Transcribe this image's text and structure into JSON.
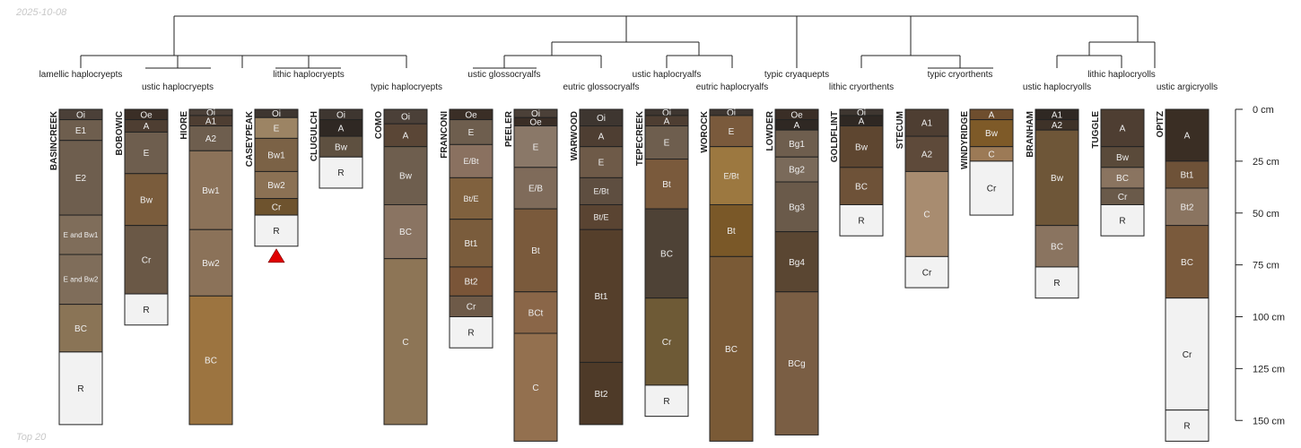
{
  "date_label": "2025-10-08",
  "caption": "Top 20",
  "depth_axis": {
    "unit": "cm",
    "ticks": [
      {
        "value": 0,
        "label": "0 cm"
      },
      {
        "value": 25,
        "label": "25 cm"
      },
      {
        "value": 50,
        "label": "50 cm"
      },
      {
        "value": 75,
        "label": "75 cm"
      },
      {
        "value": 100,
        "label": "100 cm"
      },
      {
        "value": 125,
        "label": "125 cm"
      },
      {
        "value": 150,
        "label": "150 cm"
      }
    ]
  },
  "classes": [
    "lamellic haplocryepts",
    "ustic haplocryepts",
    "lithic haplocryepts",
    "typic haplocryepts",
    "ustic glossocryalfs",
    "eutric glossocryalfs",
    "ustic haplocryalfs",
    "eutric haplocryalfs",
    "typic cryaquepts",
    "lithic cryorthents",
    "typic cryorthents",
    "ustic haplocryolls",
    "lithic haplocryolls",
    "ustic argicryolls"
  ],
  "profiles": [
    {
      "name": "BASINCREEK",
      "horizons": [
        {
          "name": "Oi",
          "top": 0,
          "bottom": 5,
          "color": "#4b4038"
        },
        {
          "name": "E1",
          "top": 5,
          "bottom": 15,
          "color": "#6e5e4e"
        },
        {
          "name": "E2",
          "top": 15,
          "bottom": 51,
          "color": "#6e5e4e"
        },
        {
          "name": "E and Bw1",
          "top": 51,
          "bottom": 70,
          "color": "#7f6d5a"
        },
        {
          "name": "E and Bw2",
          "top": 70,
          "bottom": 94,
          "color": "#7f6d5a"
        },
        {
          "name": "BC",
          "top": 94,
          "bottom": 117,
          "color": "#8a7456"
        },
        {
          "name": "R",
          "top": 117,
          "bottom": 152,
          "color": "#f2f2f2"
        }
      ]
    },
    {
      "name": "BOBOWIC",
      "horizons": [
        {
          "name": "Oe",
          "top": 0,
          "bottom": 5,
          "color": "#3a2e26"
        },
        {
          "name": "A",
          "top": 5,
          "bottom": 11,
          "color": "#4e3e32"
        },
        {
          "name": "E",
          "top": 11,
          "bottom": 31,
          "color": "#6e5e4e"
        },
        {
          "name": "Bw",
          "top": 31,
          "bottom": 56,
          "color": "#7a5c3c"
        },
        {
          "name": "Cr",
          "top": 56,
          "bottom": 89,
          "color": "#6a5846"
        },
        {
          "name": "R",
          "top": 89,
          "bottom": 104,
          "color": "#f2f2f2"
        }
      ]
    },
    {
      "name": "HIORE",
      "horizons": [
        {
          "name": "Oi",
          "top": 0,
          "bottom": 3,
          "color": "#4b4038"
        },
        {
          "name": "A1",
          "top": 3,
          "bottom": 8,
          "color": "#4e3e32"
        },
        {
          "name": "A2",
          "top": 8,
          "bottom": 20,
          "color": "#6e5e4e"
        },
        {
          "name": "Bw1",
          "top": 20,
          "bottom": 58,
          "color": "#8b7259"
        },
        {
          "name": "Bw2",
          "top": 58,
          "bottom": 90,
          "color": "#8b7259"
        },
        {
          "name": "BC",
          "top": 90,
          "bottom": 152,
          "color": "#9c7440"
        }
      ]
    },
    {
      "name": "CASEYPEAK",
      "horizons": [
        {
          "name": "Oi",
          "top": 0,
          "bottom": 4,
          "color": "#3e3630"
        },
        {
          "name": "E",
          "top": 4,
          "bottom": 14,
          "color": "#9c8464"
        },
        {
          "name": "Bw1",
          "top": 14,
          "bottom": 30,
          "color": "#7b6246"
        },
        {
          "name": "Bw2",
          "top": 30,
          "bottom": 43,
          "color": "#8b7154"
        },
        {
          "name": "Cr",
          "top": 43,
          "bottom": 51,
          "color": "#6e532e"
        },
        {
          "name": "R",
          "top": 51,
          "bottom": 66,
          "color": "#f2f2f2"
        }
      ],
      "marker": true
    },
    {
      "name": "CLUGULCH",
      "horizons": [
        {
          "name": "Oi",
          "top": 0,
          "bottom": 5,
          "color": "#3e3630"
        },
        {
          "name": "A",
          "top": 5,
          "bottom": 13,
          "color": "#2f2823"
        },
        {
          "name": "Bw",
          "top": 13,
          "bottom": 23,
          "color": "#5e5040"
        },
        {
          "name": "R",
          "top": 23,
          "bottom": 38,
          "color": "#f2f2f2"
        }
      ]
    },
    {
      "name": "COMO",
      "horizons": [
        {
          "name": "Oi",
          "top": 0,
          "bottom": 7,
          "color": "#4b4038"
        },
        {
          "name": "A",
          "top": 7,
          "bottom": 18,
          "color": "#5a4636"
        },
        {
          "name": "Bw",
          "top": 18,
          "bottom": 46,
          "color": "#6e5e4e"
        },
        {
          "name": "BC",
          "top": 46,
          "bottom": 72,
          "color": "#8a7462"
        },
        {
          "name": "C",
          "top": 72,
          "bottom": 152,
          "color": "#8d7556"
        }
      ]
    },
    {
      "name": "FRANCONI",
      "horizons": [
        {
          "name": "Oe",
          "top": 0,
          "bottom": 5,
          "color": "#3a2e26"
        },
        {
          "name": "E",
          "top": 5,
          "bottom": 17,
          "color": "#6e5e4e"
        },
        {
          "name": "E/Bt",
          "top": 17,
          "bottom": 33,
          "color": "#8a7160"
        },
        {
          "name": "Bt/E",
          "top": 33,
          "bottom": 53,
          "color": "#80613e"
        },
        {
          "name": "Bt1",
          "top": 53,
          "bottom": 76,
          "color": "#7a5c3c"
        },
        {
          "name": "Bt2",
          "top": 76,
          "bottom": 90,
          "color": "#7a5538"
        },
        {
          "name": "Cr",
          "top": 90,
          "bottom": 100,
          "color": "#6e5a48"
        },
        {
          "name": "R",
          "top": 100,
          "bottom": 115,
          "color": "#f2f2f2"
        }
      ]
    },
    {
      "name": "PEELER",
      "horizons": [
        {
          "name": "Oi",
          "top": 0,
          "bottom": 4,
          "color": "#4b4038"
        },
        {
          "name": "Oe",
          "top": 4,
          "bottom": 8,
          "color": "#3a2e26"
        },
        {
          "name": "E",
          "top": 8,
          "bottom": 28,
          "color": "#8a7868"
        },
        {
          "name": "E/B",
          "top": 28,
          "bottom": 48,
          "color": "#7f6b5a"
        },
        {
          "name": "Bt",
          "top": 48,
          "bottom": 88,
          "color": "#7a5a3c"
        },
        {
          "name": "BCt",
          "top": 88,
          "bottom": 108,
          "color": "#8a6648"
        },
        {
          "name": "C",
          "top": 108,
          "bottom": 160,
          "color": "#93704f"
        }
      ]
    },
    {
      "name": "WARWOOD",
      "horizons": [
        {
          "name": "Oi",
          "top": 0,
          "bottom": 8,
          "color": "#3e3630"
        },
        {
          "name": "A",
          "top": 8,
          "bottom": 18,
          "color": "#4e3e32"
        },
        {
          "name": "E",
          "top": 18,
          "bottom": 33,
          "color": "#6e5a48"
        },
        {
          "name": "E/Bt",
          "top": 33,
          "bottom": 46,
          "color": "#5e4e40"
        },
        {
          "name": "Bt/E",
          "top": 46,
          "bottom": 58,
          "color": "#5a4432"
        },
        {
          "name": "Bt1",
          "top": 58,
          "bottom": 122,
          "color": "#553f2b"
        },
        {
          "name": "Bt2",
          "top": 122,
          "bottom": 152,
          "color": "#4e3a28"
        }
      ]
    },
    {
      "name": "TEPECREEK",
      "horizons": [
        {
          "name": "Oi",
          "top": 0,
          "bottom": 3,
          "color": "#3e3630"
        },
        {
          "name": "A",
          "top": 3,
          "bottom": 8,
          "color": "#4e3e32"
        },
        {
          "name": "E",
          "top": 8,
          "bottom": 24,
          "color": "#6e5e4e"
        },
        {
          "name": "Bt",
          "top": 24,
          "bottom": 48,
          "color": "#7a5a3c"
        },
        {
          "name": "BC",
          "top": 48,
          "bottom": 91,
          "color": "#4e4236"
        },
        {
          "name": "Cr",
          "top": 91,
          "bottom": 133,
          "color": "#6e5a36"
        },
        {
          "name": "R",
          "top": 133,
          "bottom": 148,
          "color": "#f2f2f2"
        }
      ]
    },
    {
      "name": "WOROCK",
      "horizons": [
        {
          "name": "Oi",
          "top": 0,
          "bottom": 3,
          "color": "#3e3630"
        },
        {
          "name": "E",
          "top": 3,
          "bottom": 18,
          "color": "#7a5a3c"
        },
        {
          "name": "E/Bt",
          "top": 18,
          "bottom": 46,
          "color": "#9c7840"
        },
        {
          "name": "Bt",
          "top": 46,
          "bottom": 71,
          "color": "#7a5828"
        },
        {
          "name": "BC",
          "top": 71,
          "bottom": 160,
          "color": "#7a5a36"
        }
      ]
    },
    {
      "name": "LOWDER",
      "horizons": [
        {
          "name": "Oe",
          "top": 0,
          "bottom": 5,
          "color": "#3a2e26"
        },
        {
          "name": "A",
          "top": 5,
          "bottom": 10,
          "color": "#2f2823"
        },
        {
          "name": "Bg1",
          "top": 10,
          "bottom": 23,
          "color": "#6e5e4e"
        },
        {
          "name": "Bg2",
          "top": 23,
          "bottom": 35,
          "color": "#7a6a5a"
        },
        {
          "name": "Bg3",
          "top": 35,
          "bottom": 59,
          "color": "#6a5a4a"
        },
        {
          "name": "Bg4",
          "top": 59,
          "bottom": 88,
          "color": "#5a4632"
        },
        {
          "name": "BCg",
          "top": 88,
          "bottom": 157,
          "color": "#7a5e44"
        }
      ]
    },
    {
      "name": "GOLDFLINT",
      "horizons": [
        {
          "name": "Oi",
          "top": 0,
          "bottom": 3,
          "color": "#3e3630"
        },
        {
          "name": "A",
          "top": 3,
          "bottom": 8,
          "color": "#2f2823"
        },
        {
          "name": "Bw",
          "top": 8,
          "bottom": 28,
          "color": "#5e4630"
        },
        {
          "name": "BC",
          "top": 28,
          "bottom": 46,
          "color": "#6e5238"
        },
        {
          "name": "R",
          "top": 46,
          "bottom": 61,
          "color": "#f2f2f2"
        }
      ]
    },
    {
      "name": "STECUM",
      "horizons": [
        {
          "name": "A1",
          "top": 0,
          "bottom": 13,
          "color": "#4e3e32"
        },
        {
          "name": "A2",
          "top": 13,
          "bottom": 30,
          "color": "#5e4a3a"
        },
        {
          "name": "C",
          "top": 30,
          "bottom": 71,
          "color": "#a88c70"
        },
        {
          "name": "Cr",
          "top": 71,
          "bottom": 86,
          "color": "#f2f2f2"
        }
      ]
    },
    {
      "name": "WINDYRIDGE",
      "horizons": [
        {
          "name": "A",
          "top": 0,
          "bottom": 5,
          "color": "#6e4e2e"
        },
        {
          "name": "Bw",
          "top": 5,
          "bottom": 18,
          "color": "#7e5a28"
        },
        {
          "name": "C",
          "top": 18,
          "bottom": 25,
          "color": "#9c7a56"
        },
        {
          "name": "Cr",
          "top": 25,
          "bottom": 51,
          "color": "#f2f2f2"
        }
      ]
    },
    {
      "name": "BRANHAM",
      "horizons": [
        {
          "name": "A1",
          "top": 0,
          "bottom": 5,
          "color": "#2f2823"
        },
        {
          "name": "A2",
          "top": 5,
          "bottom": 10,
          "color": "#3e3228"
        },
        {
          "name": "Bw",
          "top": 10,
          "bottom": 56,
          "color": "#6e5638"
        },
        {
          "name": "BC",
          "top": 56,
          "bottom": 76,
          "color": "#8a7460"
        },
        {
          "name": "R",
          "top": 76,
          "bottom": 91,
          "color": "#f2f2f2"
        }
      ]
    },
    {
      "name": "TUGGLE",
      "horizons": [
        {
          "name": "A",
          "top": 0,
          "bottom": 18,
          "color": "#4e3e32"
        },
        {
          "name": "Bw",
          "top": 18,
          "bottom": 28,
          "color": "#5a4a3a"
        },
        {
          "name": "BC",
          "top": 28,
          "bottom": 38,
          "color": "#8a7460"
        },
        {
          "name": "Cr",
          "top": 38,
          "bottom": 46,
          "color": "#6a5a4a"
        },
        {
          "name": "R",
          "top": 46,
          "bottom": 61,
          "color": "#f2f2f2"
        }
      ]
    },
    {
      "name": "OPITZ",
      "horizons": [
        {
          "name": "A",
          "top": 0,
          "bottom": 25,
          "color": "#3a2e24"
        },
        {
          "name": "Bt1",
          "top": 25,
          "bottom": 38,
          "color": "#6e5238"
        },
        {
          "name": "Bt2",
          "top": 38,
          "bottom": 56,
          "color": "#8a7460"
        },
        {
          "name": "BC",
          "top": 56,
          "bottom": 91,
          "color": "#7a5a3c"
        },
        {
          "name": "Cr",
          "top": 91,
          "bottom": 145,
          "color": "#f2f2f2"
        },
        {
          "name": "R",
          "top": 145,
          "bottom": 160,
          "color": "#f2f2f2"
        }
      ]
    }
  ],
  "colors": {
    "tree_line": "#222222",
    "horizon_border": "#222222",
    "dark_text": "#222222",
    "light_text": "#eeeeee",
    "marker": "#e00000"
  }
}
